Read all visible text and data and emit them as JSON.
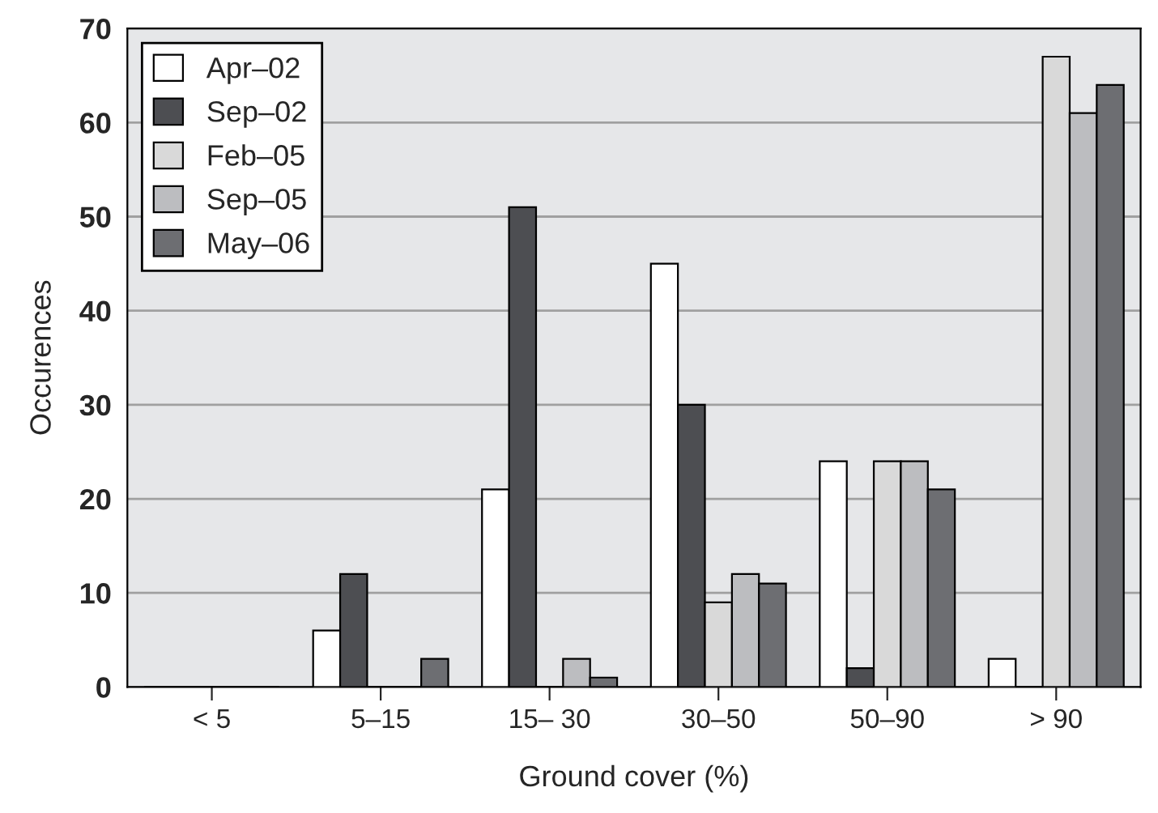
{
  "chart_data": {
    "type": "bar",
    "xlabel": "Ground cover (%)",
    "ylabel": "Occurences",
    "categories": [
      "< 5",
      "5–15",
      "15– 30",
      "30–50",
      "50–90",
      "> 90"
    ],
    "series": [
      {
        "name": "Apr–02",
        "color": "#ffffff",
        "values": [
          0,
          6,
          21,
          45,
          24,
          3
        ]
      },
      {
        "name": "Sep–02",
        "color": "#4d4e52",
        "values": [
          0,
          12,
          51,
          30,
          2,
          0
        ]
      },
      {
        "name": "Feb–05",
        "color": "#d9d9d9",
        "values": [
          0,
          0,
          0,
          9,
          24,
          67
        ]
      },
      {
        "name": "Sep–05",
        "color": "#bcbdc0",
        "values": [
          0,
          0,
          3,
          12,
          24,
          61
        ]
      },
      {
        "name": "May–06",
        "color": "#6d6e72",
        "values": [
          0,
          3,
          1,
          11,
          21,
          64
        ]
      }
    ],
    "ylim": [
      0,
      70
    ],
    "yticks": [
      0,
      10,
      20,
      30,
      40,
      50,
      60,
      70
    ],
    "grid": "y",
    "legend": "top left"
  }
}
